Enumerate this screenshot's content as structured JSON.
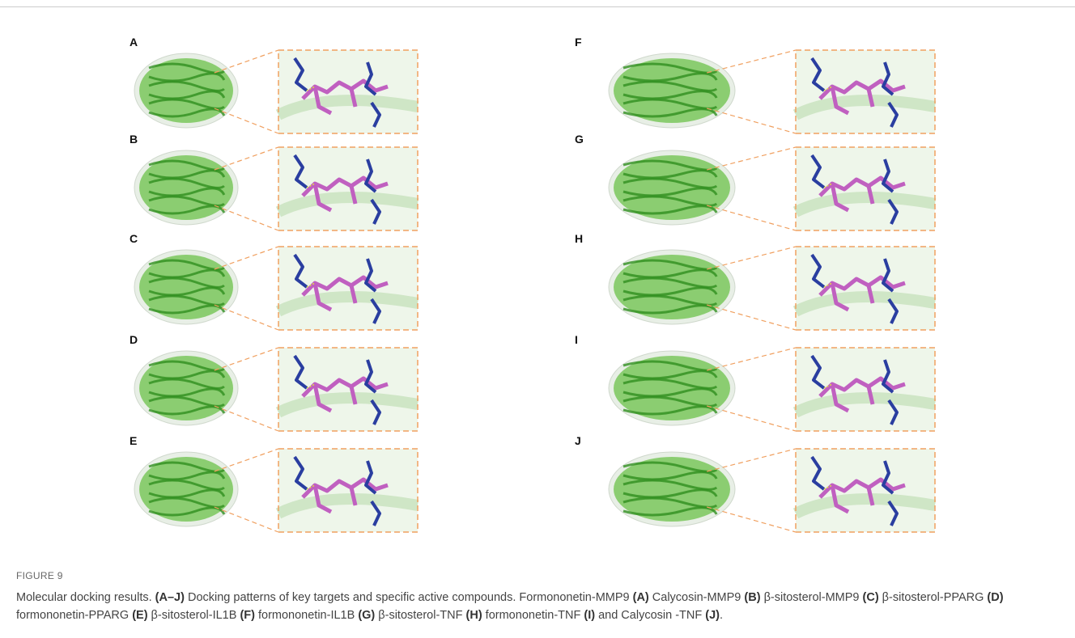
{
  "figure": {
    "panels": [
      {
        "label": "A"
      },
      {
        "label": "B"
      },
      {
        "label": "C"
      },
      {
        "label": "D"
      },
      {
        "label": "E"
      },
      {
        "label": "F"
      },
      {
        "label": "G"
      },
      {
        "label": "H"
      },
      {
        "label": "I"
      },
      {
        "label": "J"
      }
    ],
    "caption": {
      "title": "FIGURE 9",
      "segments": [
        {
          "text": "Molecular docking results. ",
          "bold": false
        },
        {
          "text": "(A–J)",
          "bold": true
        },
        {
          "text": " Docking patterns of key targets and specific active compounds. Formononetin-MMP9 ",
          "bold": false
        },
        {
          "text": "(A)",
          "bold": true
        },
        {
          "text": " Calycosin-MMP9 ",
          "bold": false
        },
        {
          "text": "(B)",
          "bold": true
        },
        {
          "text": " β-sitosterol-MMP9 ",
          "bold": false
        },
        {
          "text": "(C)",
          "bold": true
        },
        {
          "text": " β-sitosterol-PPARG ",
          "bold": false
        },
        {
          "text": "(D)",
          "bold": true
        },
        {
          "text": " formononetin-PPARG ",
          "bold": false
        },
        {
          "text": "(E)",
          "bold": true
        },
        {
          "text": " β-sitosterol-IL1B ",
          "bold": false
        },
        {
          "text": "(F)",
          "bold": true
        },
        {
          "text": " formononetin-IL1B ",
          "bold": false
        },
        {
          "text": "(G)",
          "bold": true
        },
        {
          "text": " β-sitosterol-TNF ",
          "bold": false
        },
        {
          "text": "(H)",
          "bold": true
        },
        {
          "text": " formononetin-TNF ",
          "bold": false
        },
        {
          "text": "(I)",
          "bold": true
        },
        {
          "text": " and Calycosin -TNF ",
          "bold": false
        },
        {
          "text": "(J)",
          "bold": true
        },
        {
          "text": ".",
          "bold": false
        }
      ]
    }
  }
}
